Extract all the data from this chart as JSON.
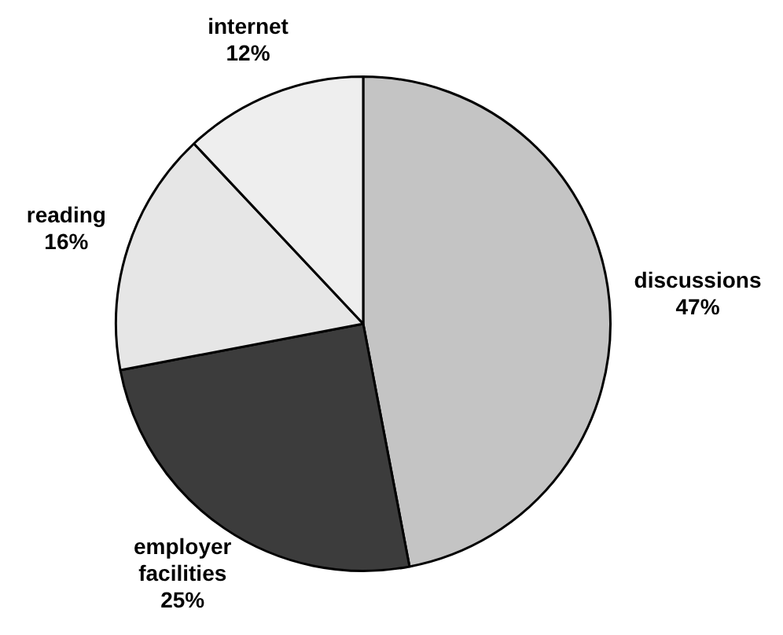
{
  "chart_data": {
    "type": "pie",
    "categories": [
      "discussions",
      "employer facilities",
      "reading",
      "internet"
    ],
    "values": [
      47,
      25,
      16,
      12
    ],
    "colors": [
      "#c4c4c4",
      "#3c3c3c",
      "#e6e6e6",
      "#eeeeee"
    ],
    "value_labels": [
      "47%",
      "25%",
      "16%",
      "12%"
    ],
    "legend": false
  }
}
